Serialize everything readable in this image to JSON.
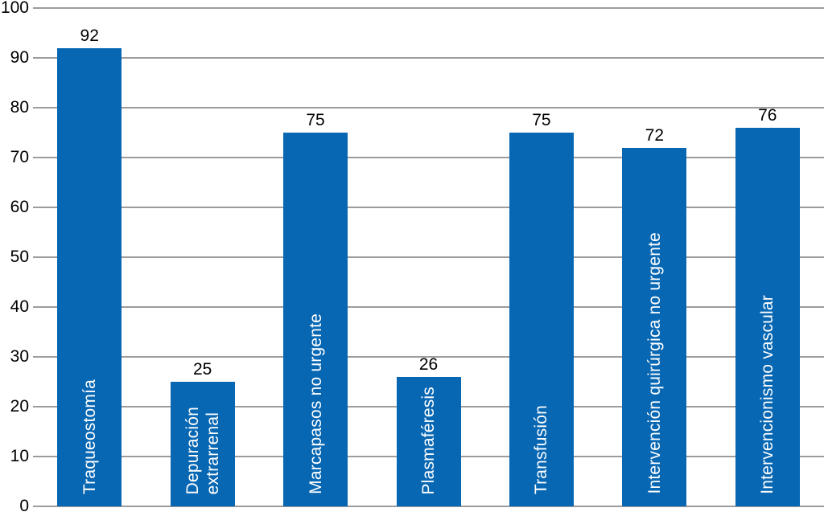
{
  "chart_data": {
    "type": "bar",
    "categories": [
      "Traqueostomía",
      "Depuración\nextrarrenal",
      "Marcapasos no urgente",
      "Plasmaféresis",
      "Transfusión",
      "Intervención quirúrgica no urgente",
      "Intervencionismo vascular"
    ],
    "values": [
      92,
      25,
      75,
      26,
      75,
      72,
      76
    ],
    "title": "",
    "xlabel": "",
    "ylabel": "",
    "ylim": [
      0,
      100
    ],
    "yticks": [
      0,
      10,
      20,
      30,
      40,
      50,
      60,
      70,
      80,
      90,
      100
    ],
    "grid": true,
    "legend": "none",
    "bar_label_position": "inside-vertical",
    "value_label_position": "above",
    "colors": {
      "bar": "#0867b3",
      "bar_label": "#ffffff",
      "value_label": "#000000",
      "tick_label": "#000000",
      "gridline": "#9c9c9c",
      "background": "#ffffff"
    }
  }
}
